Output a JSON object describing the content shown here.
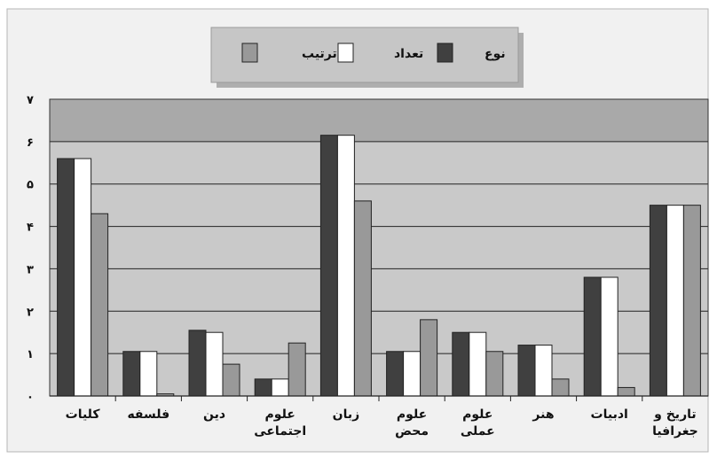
{
  "chart_data": {
    "type": "bar",
    "title": "",
    "xlabel": "",
    "ylabel": "",
    "ylim": [
      0,
      7
    ],
    "y_ticks": [
      "۰",
      "۱",
      "۲",
      "۳",
      "۴",
      "۵",
      "۶",
      "۷"
    ],
    "grid": true,
    "legend_position": "top-center",
    "categories": [
      [
        "کلیات"
      ],
      [
        "فلسفه"
      ],
      [
        "دین"
      ],
      [
        "علوم",
        "اجتماعی"
      ],
      [
        "زبان"
      ],
      [
        "علوم",
        "محض"
      ],
      [
        "علوم",
        "عملی"
      ],
      [
        "هنر"
      ],
      [
        "ادبیات"
      ],
      [
        "تاریخ و",
        "جغرافیا"
      ]
    ],
    "series": [
      {
        "name": "نوع",
        "color": "#404040",
        "values": [
          5.6,
          1.05,
          1.55,
          0.4,
          6.15,
          1.05,
          1.5,
          1.2,
          2.8,
          4.5
        ]
      },
      {
        "name": "تعداد",
        "color": "#ffffff",
        "values": [
          5.6,
          1.05,
          1.5,
          0.4,
          6.15,
          1.05,
          1.5,
          1.2,
          2.8,
          4.5
        ]
      },
      {
        "name": "ترتیب",
        "color": "#999999",
        "values": [
          4.3,
          0.05,
          0.75,
          1.25,
          4.6,
          1.8,
          1.05,
          0.4,
          0.2,
          4.5
        ]
      }
    ]
  }
}
